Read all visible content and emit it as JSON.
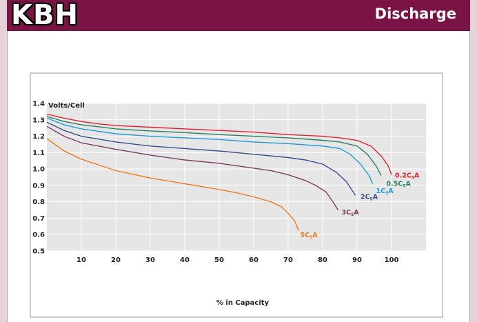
{
  "header": {
    "brand": "KBH",
    "title": "Discharge"
  },
  "chart_data": {
    "type": "line",
    "title": "",
    "ylabel": "Volts/Cell",
    "xlabel": "% in Capacity",
    "xlim": [
      0,
      110
    ],
    "ylim": [
      0.5,
      1.4
    ],
    "xticks": [
      10,
      20,
      30,
      40,
      50,
      60,
      70,
      80,
      90,
      100
    ],
    "yticks": [
      0.5,
      0.6,
      0.7,
      0.8,
      0.9,
      1.0,
      1.1,
      1.2,
      1.3,
      1.4
    ],
    "xtick_labels": [
      "10",
      "20",
      "30",
      "40",
      "50",
      "60",
      "70",
      "80",
      "90",
      "100"
    ],
    "ytick_labels": [
      "0.5",
      "0.6",
      "0.7",
      "0.8",
      "0.9",
      "1.0",
      "1.1",
      "1.2",
      "1.3",
      "1.4"
    ],
    "grid": true,
    "background": "#e6e6e6",
    "series": [
      {
        "label_main": "0.2C",
        "label_sub": "5",
        "label_unit": "A",
        "color": "#e0202a",
        "label_at": [
          101,
          0.965
        ],
        "points": [
          [
            0,
            1.335
          ],
          [
            5,
            1.31
          ],
          [
            10,
            1.29
          ],
          [
            15,
            1.275
          ],
          [
            20,
            1.265
          ],
          [
            25,
            1.26
          ],
          [
            30,
            1.255
          ],
          [
            40,
            1.245
          ],
          [
            50,
            1.235
          ],
          [
            60,
            1.225
          ],
          [
            70,
            1.21
          ],
          [
            80,
            1.2
          ],
          [
            85,
            1.19
          ],
          [
            90,
            1.175
          ],
          [
            94,
            1.14
          ],
          [
            97,
            1.08
          ],
          [
            99,
            1.02
          ],
          [
            100,
            0.965
          ]
        ]
      },
      {
        "label_main": "0.5C",
        "label_sub": "5",
        "label_unit": "A",
        "color": "#2a7d63",
        "label_at": [
          98.5,
          0.915
        ],
        "points": [
          [
            0,
            1.32
          ],
          [
            5,
            1.29
          ],
          [
            10,
            1.27
          ],
          [
            20,
            1.245
          ],
          [
            30,
            1.232
          ],
          [
            40,
            1.222
          ],
          [
            50,
            1.21
          ],
          [
            60,
            1.2
          ],
          [
            70,
            1.19
          ],
          [
            80,
            1.175
          ],
          [
            85,
            1.165
          ],
          [
            90,
            1.14
          ],
          [
            93,
            1.09
          ],
          [
            95.5,
            1.02
          ],
          [
            97,
            0.96
          ]
        ]
      },
      {
        "label_main": "1C",
        "label_sub": "5",
        "label_unit": "A",
        "color": "#1a9ad6",
        "label_at": [
          95.5,
          0.87
        ],
        "points": [
          [
            0,
            1.31
          ],
          [
            5,
            1.27
          ],
          [
            10,
            1.245
          ],
          [
            20,
            1.215
          ],
          [
            30,
            1.2
          ],
          [
            40,
            1.19
          ],
          [
            50,
            1.18
          ],
          [
            60,
            1.165
          ],
          [
            70,
            1.155
          ],
          [
            80,
            1.14
          ],
          [
            85,
            1.125
          ],
          [
            88,
            1.09
          ],
          [
            91,
            1.03
          ],
          [
            93.5,
            0.96
          ],
          [
            94.5,
            0.91
          ]
        ]
      },
      {
        "label_main": "2C",
        "label_sub": "5",
        "label_unit": "A",
        "color": "#3a4e8c",
        "label_at": [
          91,
          0.835
        ],
        "points": [
          [
            0,
            1.285
          ],
          [
            5,
            1.235
          ],
          [
            10,
            1.2
          ],
          [
            20,
            1.165
          ],
          [
            30,
            1.14
          ],
          [
            40,
            1.125
          ],
          [
            50,
            1.11
          ],
          [
            60,
            1.09
          ],
          [
            70,
            1.07
          ],
          [
            75,
            1.055
          ],
          [
            80,
            1.03
          ],
          [
            84,
            0.98
          ],
          [
            87,
            0.92
          ],
          [
            89.5,
            0.84
          ]
        ]
      },
      {
        "label_main": "3C",
        "label_sub": "5",
        "label_unit": "A",
        "color": "#7b3c5e",
        "label_at": [
          85.5,
          0.74
        ],
        "points": [
          [
            0,
            1.26
          ],
          [
            5,
            1.2
          ],
          [
            10,
            1.16
          ],
          [
            20,
            1.12
          ],
          [
            30,
            1.085
          ],
          [
            40,
            1.055
          ],
          [
            50,
            1.035
          ],
          [
            60,
            1.005
          ],
          [
            65,
            0.99
          ],
          [
            70,
            0.965
          ],
          [
            75,
            0.93
          ],
          [
            78,
            0.9
          ],
          [
            81,
            0.86
          ],
          [
            83,
            0.8
          ],
          [
            84.5,
            0.75
          ]
        ]
      },
      {
        "label_main": "5C",
        "label_sub": "5",
        "label_unit": "A",
        "color": "#f07a1a",
        "label_at": [
          73.5,
          0.6
        ],
        "points": [
          [
            0,
            1.185
          ],
          [
            5,
            1.11
          ],
          [
            10,
            1.06
          ],
          [
            20,
            0.99
          ],
          [
            30,
            0.945
          ],
          [
            40,
            0.91
          ],
          [
            50,
            0.875
          ],
          [
            55,
            0.855
          ],
          [
            60,
            0.83
          ],
          [
            65,
            0.8
          ],
          [
            68,
            0.77
          ],
          [
            70,
            0.73
          ],
          [
            72,
            0.68
          ],
          [
            73,
            0.625
          ]
        ]
      }
    ]
  }
}
